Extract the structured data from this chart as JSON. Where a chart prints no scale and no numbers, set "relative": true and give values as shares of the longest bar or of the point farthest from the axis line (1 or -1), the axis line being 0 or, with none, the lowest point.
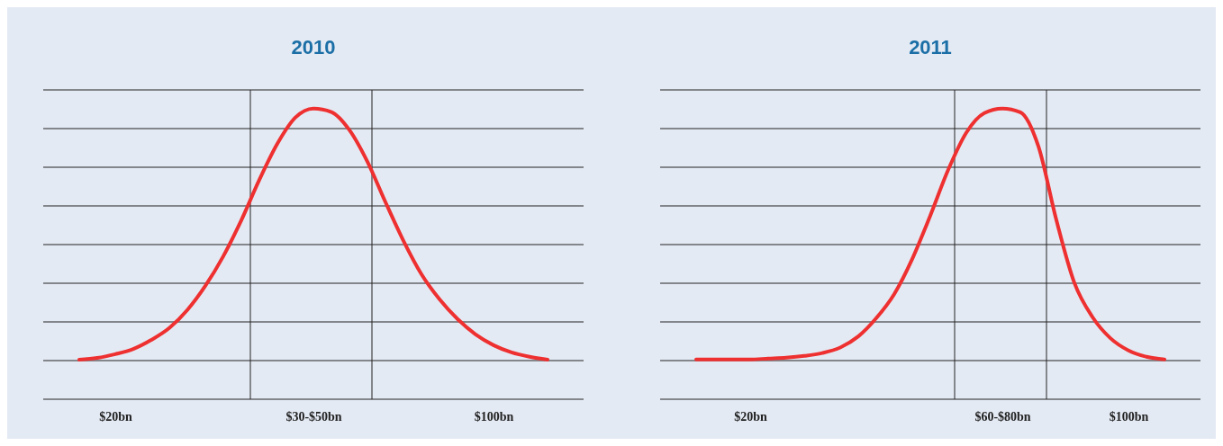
{
  "chart_data": [
    {
      "type": "line",
      "title": "2010",
      "relative": true,
      "grid": "y",
      "categories": [
        null,
        null,
        null,
        null,
        "$20bn",
        null,
        null,
        null,
        null,
        null,
        null,
        null,
        null,
        null,
        null,
        "$30-$50bn",
        null,
        null,
        null,
        null,
        null,
        null,
        null,
        null,
        null,
        "$100bn",
        null,
        null,
        null,
        null,
        null
      ],
      "series": [
        {
          "color": "#ee3030",
          "values": [
            null,
            null,
            0.136,
            0.142,
            0.155,
            0.173,
            0.204,
            0.245,
            0.307,
            0.39,
            0.492,
            0.616,
            0.755,
            0.879,
            0.969,
            1,
            0.988,
            0.926,
            0.817,
            0.678,
            0.545,
            0.43,
            0.344,
            0.276,
            0.223,
            0.186,
            0.161,
            0.146,
            0.136,
            null,
            null
          ]
        }
      ]
    },
    {
      "type": "line",
      "title": "2011",
      "relative": true,
      "grid": "y",
      "categories": [
        null,
        null,
        null,
        null,
        null,
        "$20bn",
        null,
        null,
        null,
        null,
        null,
        null,
        null,
        null,
        null,
        null,
        null,
        null,
        null,
        "$60-$80bn",
        null,
        null,
        null,
        null,
        null,
        null,
        "$100bn",
        null,
        null,
        null,
        null
      ],
      "series": [
        {
          "color": "#ee3030",
          "values": [
            null,
            null,
            0.137,
            0.137,
            0.137,
            0.137,
            0.14,
            0.143,
            0.149,
            0.159,
            0.178,
            0.216,
            0.279,
            0.362,
            0.483,
            0.632,
            0.79,
            0.917,
            0.984,
            1,
            0.987,
            0.87,
            0.616,
            0.4,
            0.283,
            0.21,
            0.168,
            0.146,
            0.137,
            null,
            null
          ]
        }
      ]
    }
  ]
}
